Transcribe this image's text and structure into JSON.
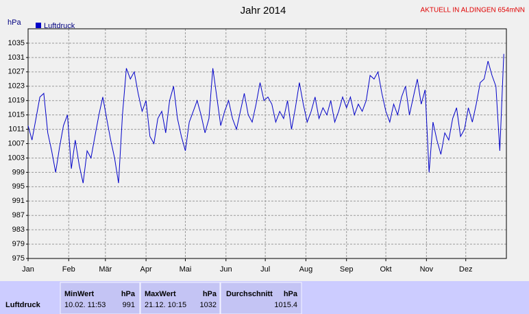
{
  "chart_data": {
    "type": "line",
    "title": "Jahr 2014",
    "subtitle": "AKTUELL IN ALDINGEN 654mNN",
    "y_label": "hPa",
    "x": [
      0,
      3,
      6,
      9,
      12,
      15,
      18,
      21,
      24,
      27,
      30,
      33,
      36,
      39,
      42,
      45,
      48,
      51,
      54,
      57,
      60,
      63,
      66,
      69,
      72,
      75,
      78,
      81,
      84,
      87,
      90,
      93,
      96,
      99,
      102,
      105,
      108,
      111,
      114,
      117,
      120,
      123,
      126,
      129,
      132,
      135,
      138,
      141,
      144,
      147,
      150,
      153,
      156,
      159,
      162,
      165,
      168,
      171,
      174,
      177,
      180,
      183,
      186,
      189,
      192,
      195,
      198,
      201,
      204,
      207,
      210,
      213,
      216,
      219,
      222,
      225,
      228,
      231,
      234,
      237,
      240,
      243,
      246,
      249,
      252,
      255,
      258,
      261,
      264,
      267,
      270,
      273,
      276,
      279,
      282,
      285,
      288,
      291,
      294,
      297,
      300,
      303,
      306,
      309,
      312,
      315,
      318,
      321,
      324,
      327,
      330,
      333,
      336,
      339,
      342,
      345,
      348,
      351,
      354,
      357,
      360,
      363
    ],
    "series": [
      {
        "name": "Luftdruck",
        "color": "#0000c8",
        "values": [
          1012,
          1008,
          1014,
          1020,
          1021,
          1010,
          1005,
          999,
          1006,
          1012,
          1015,
          1000,
          1008,
          1001,
          996,
          1005,
          1003,
          1009,
          1015,
          1020,
          1014,
          1008,
          1003,
          996,
          1015,
          1028,
          1025,
          1027,
          1021,
          1016,
          1019,
          1009,
          1007,
          1014,
          1016,
          1010,
          1019,
          1023,
          1014,
          1009,
          1005,
          1013,
          1016,
          1019,
          1015,
          1010,
          1014,
          1028,
          1020,
          1012,
          1016,
          1019,
          1014,
          1011,
          1016,
          1021,
          1015,
          1013,
          1018,
          1024,
          1019,
          1020,
          1018,
          1013,
          1016,
          1014,
          1019,
          1011,
          1017,
          1024,
          1018,
          1013,
          1016,
          1020,
          1014,
          1017,
          1015,
          1019,
          1013,
          1016,
          1020,
          1017,
          1020,
          1015,
          1018,
          1016,
          1019,
          1026,
          1025,
          1027,
          1021,
          1016,
          1013,
          1018,
          1015,
          1020,
          1023,
          1015,
          1020,
          1025,
          1018,
          1022,
          999,
          1013,
          1008,
          1004,
          1010,
          1008,
          1014,
          1017,
          1009,
          1011,
          1017,
          1013,
          1018,
          1024,
          1025,
          1030,
          1026,
          1023,
          1005,
          1032
        ]
      }
    ],
    "xlim": [
      0,
      365
    ],
    "xticks": [
      {
        "value": 0,
        "label": "Jan"
      },
      {
        "value": 31,
        "label": "Feb"
      },
      {
        "value": 59,
        "label": "Mär"
      },
      {
        "value": 90,
        "label": "Apr"
      },
      {
        "value": 120,
        "label": "Mai"
      },
      {
        "value": 151,
        "label": "Jun"
      },
      {
        "value": 181,
        "label": "Jul"
      },
      {
        "value": 212,
        "label": "Aug"
      },
      {
        "value": 243,
        "label": "Sep"
      },
      {
        "value": 273,
        "label": "Okt"
      },
      {
        "value": 304,
        "label": "Nov"
      },
      {
        "value": 334,
        "label": "Dez"
      }
    ],
    "ylim": [
      975,
      1039
    ],
    "yticks": [
      975,
      979,
      983,
      987,
      991,
      995,
      999,
      1003,
      1007,
      1011,
      1015,
      1019,
      1023,
      1027,
      1031,
      1035
    ],
    "grid": true
  },
  "stats": {
    "row_label": "Luftdruck",
    "columns": [
      {
        "name": "MinWert",
        "unit": "hPa",
        "time": "10.02.  11:53",
        "value": 991
      },
      {
        "name": "MaxWert",
        "unit": "hPa",
        "time": "21.12.  10:15",
        "value": 1032
      },
      {
        "name": "Durchschnitt",
        "unit": "hPa",
        "value": 1015.4
      }
    ]
  }
}
